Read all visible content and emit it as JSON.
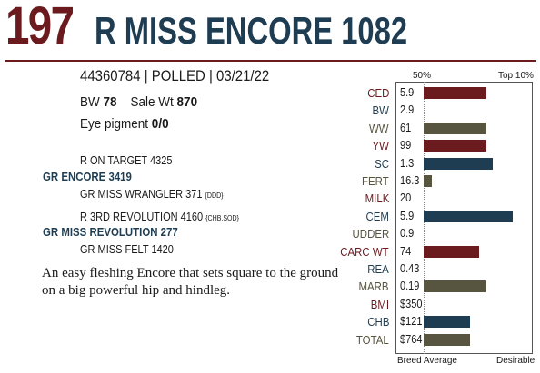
{
  "header": {
    "lot_number": "197",
    "animal_name": "R MISS ENCORE 1082"
  },
  "info": {
    "id_line": "44360784 | POLLED | 03/21/22",
    "bw_label": "BW",
    "bw_value": "78",
    "sale_wt_label": "Sale Wt",
    "sale_wt_value": "870",
    "eye_label": "Eye pigment",
    "eye_value": "0/0"
  },
  "pedigree": {
    "sire_sire": "R ON TARGET 4325",
    "sire": "GR ENCORE 3419",
    "sire_dam": "GR MISS WRANGLER 371",
    "sire_dam_tag": "{DDD}",
    "dam_sire": "R 3RD REVOLUTION 4160",
    "dam_sire_tag": "{CHB,SOD}",
    "dam": "GR MISS REVOLUTION 277",
    "dam_dam": "GR MISS FELT 1420"
  },
  "description": "An easy fleshing Encore that sets square to the ground on a big powerful hip and hindleg.",
  "epd_panel": {
    "header_left": "50%",
    "header_right": "Top 10%",
    "footer_left": "Breed Average",
    "footer_right": "Desirable",
    "colors": {
      "maroon": "#6b1a1e",
      "navy": "#1f3d52",
      "olive": "#57553f"
    },
    "rows": [
      {
        "label": "CED",
        "value": "5.9",
        "color": "maroon",
        "bar_start": 0.0,
        "bar_end": 0.7
      },
      {
        "label": "BW",
        "value": "2.9",
        "color": "navy",
        "bar_start": 0,
        "bar_end": 0
      },
      {
        "label": "WW",
        "value": "61",
        "color": "olive",
        "bar_start": 0.0,
        "bar_end": 0.7
      },
      {
        "label": "YW",
        "value": "99",
        "color": "maroon",
        "bar_start": 0.0,
        "bar_end": 0.7
      },
      {
        "label": "SC",
        "value": "1.3",
        "color": "navy",
        "bar_start": 0.0,
        "bar_end": 0.78
      },
      {
        "label": "FERT",
        "value": "16.3",
        "color": "olive",
        "bar_start": 0.0,
        "bar_end": 0.09
      },
      {
        "label": "MILK",
        "value": "20",
        "color": "maroon",
        "bar_start": 0,
        "bar_end": 0
      },
      {
        "label": "CEM",
        "value": "5.9",
        "color": "navy",
        "bar_start": 0.0,
        "bar_end": 1.0
      },
      {
        "label": "UDDER",
        "value": "0.9",
        "color": "olive",
        "bar_start": 0,
        "bar_end": 0
      },
      {
        "label": "CARC WT",
        "value": "74",
        "color": "maroon",
        "bar_start": 0.0,
        "bar_end": 0.62
      },
      {
        "label": "REA",
        "value": "0.43",
        "color": "navy",
        "bar_start": 0,
        "bar_end": 0
      },
      {
        "label": "MARB",
        "value": "0.19",
        "color": "olive",
        "bar_start": 0.0,
        "bar_end": 0.7
      },
      {
        "label": "BMI",
        "value": "$350",
        "color": "maroon",
        "bar_start": 0,
        "bar_end": 0
      },
      {
        "label": "CHB",
        "value": "$121",
        "color": "navy",
        "bar_start": 0.0,
        "bar_end": 0.52
      },
      {
        "label": "TOTAL",
        "value": "$764",
        "color": "olive",
        "bar_start": 0.0,
        "bar_end": 0.52
      }
    ]
  }
}
